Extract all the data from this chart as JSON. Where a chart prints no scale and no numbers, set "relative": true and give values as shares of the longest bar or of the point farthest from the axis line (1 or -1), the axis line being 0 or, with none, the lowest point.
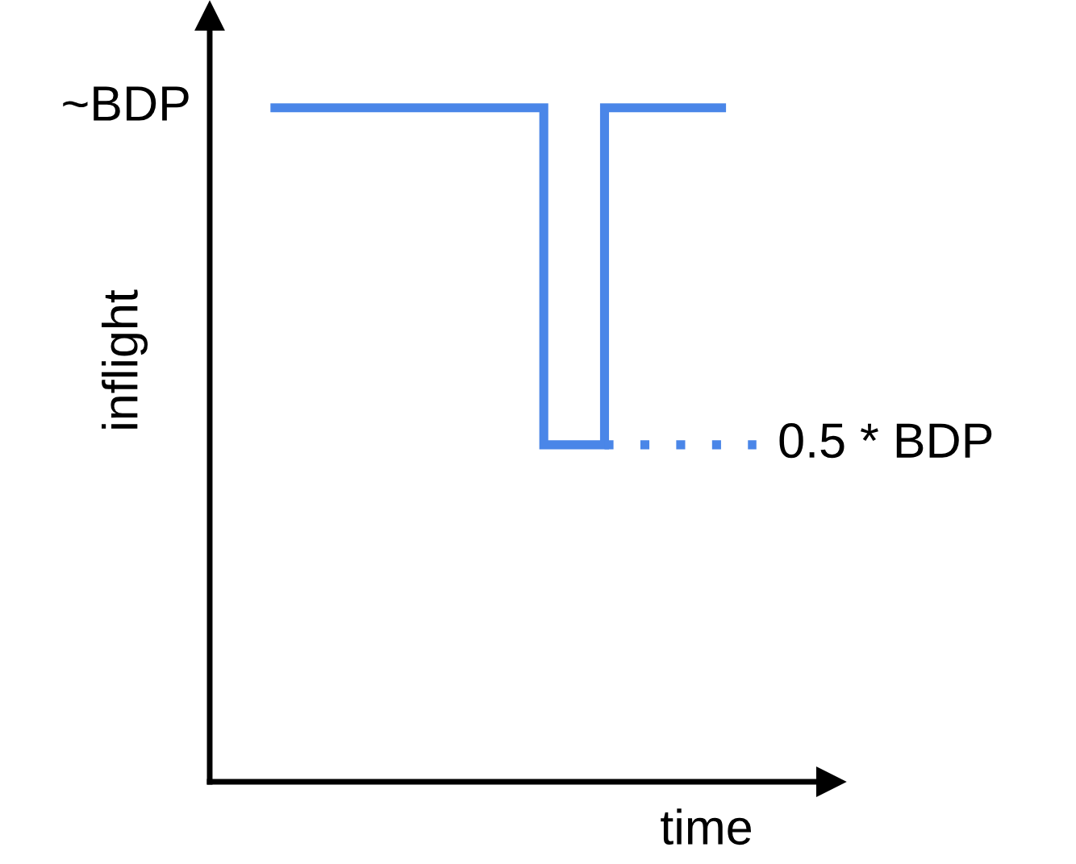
{
  "chart_data": {
    "type": "step",
    "relative": true,
    "xlabel": "time",
    "ylabel": "inflight",
    "categories": [
      null,
      null,
      null,
      null,
      null,
      null,
      null,
      null,
      null,
      null,
      null,
      null,
      null,
      null,
      null,
      null,
      null
    ],
    "series": [
      {
        "color": "#4a86e8",
        "values": [
          1,
          1,
          1,
          1,
          1,
          1,
          1,
          1,
          1,
          0.5,
          0.5,
          1,
          1,
          1,
          1,
          1,
          null
        ],
        "line_style": "solid"
      },
      {
        "color": "#4a86e8",
        "type": "line",
        "values": [
          null,
          null,
          null,
          null,
          null,
          null,
          null,
          null,
          null,
          null,
          null,
          0.5,
          0.5,
          0.5,
          0.5,
          0.5,
          0.5
        ],
        "line_style": "dotted"
      }
    ],
    "annotations": [
      "~BDP",
      "0.5 * BDP"
    ]
  }
}
